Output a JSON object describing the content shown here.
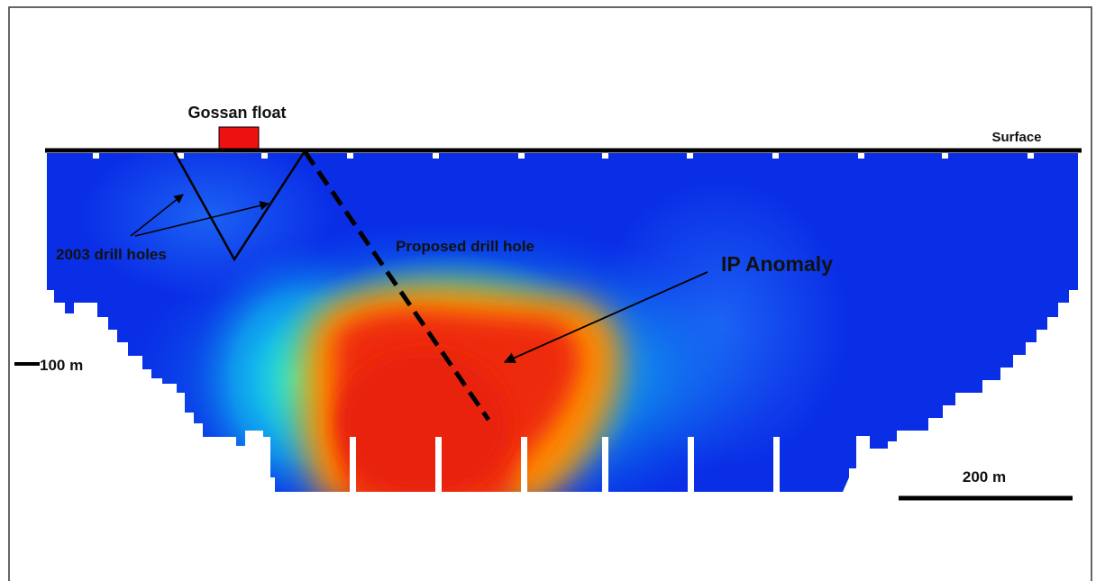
{
  "figure": {
    "labels": {
      "gossan_float": "Gossan float",
      "surface": "Surface",
      "drill_holes_2003": "2003 drill holes",
      "proposed_drill_hole": "Proposed drill hole",
      "ip_anomaly": "IP Anomaly",
      "depth_marker": "100 m",
      "scale_bar": "200 m"
    },
    "colors": {
      "background_low": "#0a2ee6",
      "anomaly_high": "#ee2a10",
      "gossan_float": "#ee1111",
      "lines": "#000000"
    }
  }
}
